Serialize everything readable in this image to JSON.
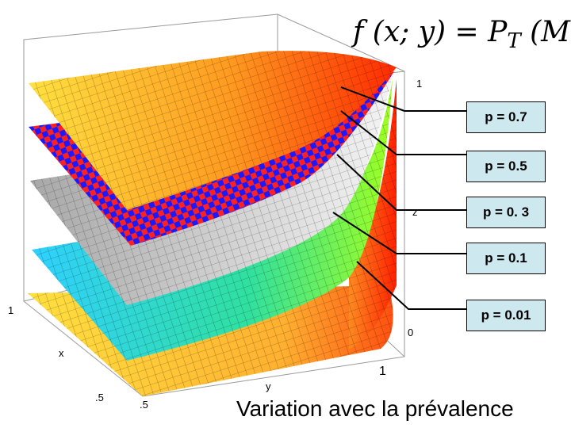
{
  "formula": "f (x; y) = P_T (M )",
  "formula_parts": {
    "lhs": "f (x; y) = P",
    "sub": "T",
    "rhs": " (M )"
  },
  "legend": [
    "p = 0.7",
    "p = 0.5",
    "p = 0. 3",
    "p = 0.1",
    "p = 0.01"
  ],
  "caption": "Variation avec la prévalence",
  "axis_labels": {
    "x": "x",
    "y": "y",
    "z": "z"
  },
  "ticks": {
    "z_top": "1",
    "z_mid": "z",
    "z_bottom": "0",
    "x_one": "1",
    "x_half": ".5",
    "y_one": "1",
    "y_half": ".5"
  },
  "colors": {
    "surface_p07": "#f0a030",
    "surface_p05_red": "#ff2020",
    "surface_p05_blue": "#1a1aff",
    "surface_p03": "#c8c8c8",
    "surface_p01": "#30d0ff",
    "surface_p001": "#ffe040",
    "legend_bg": "#cde8ee"
  }
}
